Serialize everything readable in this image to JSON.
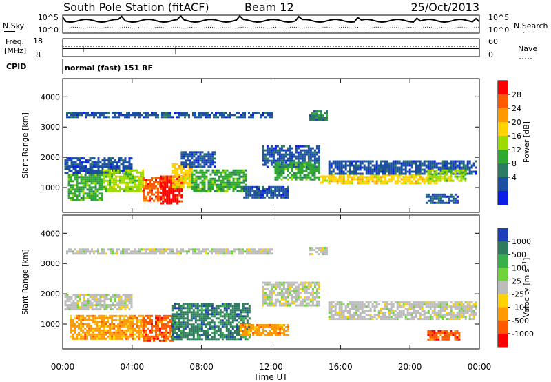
{
  "header": {
    "station": "South Pole Station (fitACF)",
    "beam": "Beam 12",
    "date": "25/Oct/2013"
  },
  "top_panels": {
    "nsky_label": "N.Sky",
    "nsky_ticks": [
      "10^5",
      "10^0"
    ],
    "nsearch_label": "N.Search",
    "nsearch_ticks": [
      "10^5",
      "10^0"
    ],
    "freq_label_line1": "Freq.",
    "freq_label_line2": "[MHz]",
    "freq_ticks": [
      "18",
      "8"
    ],
    "nave_label": "Nave",
    "nave_ticks": [
      "60",
      "0"
    ],
    "cpid_label": "CPID",
    "cpid_text": "normal (fast) 151 RF"
  },
  "chart_data": [
    {
      "type": "heatmap",
      "title": "",
      "xlabel": "Time UT",
      "ylabel": "Slant Range [km]",
      "x_ticks": [
        "00:00",
        "04:00",
        "08:00",
        "12:00",
        "16:00",
        "20:00",
        "00:00"
      ],
      "y_ticks": [
        "1000",
        "2000",
        "3000",
        "4000"
      ],
      "xlim": [
        0,
        24
      ],
      "ylim": [
        180,
        4600
      ],
      "colorbar": {
        "label": "Power [dB]",
        "ticks": [
          "28",
          "24",
          "20",
          "16",
          "12",
          "8",
          "4"
        ],
        "colors": [
          "#ff0000",
          "#ff5a00",
          "#ff9a00",
          "#ffd200",
          "#9adc00",
          "#2ea82e",
          "#2b7a63",
          "#1b4fa0",
          "#0a1ee6"
        ]
      },
      "features": [
        {
          "x0": 0.1,
          "x1": 4.0,
          "y0": 1500,
          "y1": 2000,
          "level": 7
        },
        {
          "x0": 0.3,
          "x1": 2.3,
          "y0": 600,
          "y1": 1450,
          "level": 5
        },
        {
          "x0": 2.3,
          "x1": 4.6,
          "y0": 850,
          "y1": 1600,
          "level": 4
        },
        {
          "x0": 4.6,
          "x1": 5.8,
          "y0": 550,
          "y1": 1350,
          "level": 1
        },
        {
          "x0": 5.6,
          "x1": 6.9,
          "y0": 500,
          "y1": 1400,
          "level": 0
        },
        {
          "x0": 6.3,
          "x1": 7.4,
          "y0": 1000,
          "y1": 1800,
          "level": 3
        },
        {
          "x0": 7.4,
          "x1": 10.6,
          "y0": 900,
          "y1": 1600,
          "level": 5
        },
        {
          "x0": 6.8,
          "x1": 8.8,
          "y0": 1700,
          "y1": 2200,
          "level": 7
        },
        {
          "x0": 10.4,
          "x1": 13.0,
          "y0": 650,
          "y1": 1050,
          "level": 7
        },
        {
          "x0": 11.5,
          "x1": 14.8,
          "y0": 1700,
          "y1": 2400,
          "level": 7
        },
        {
          "x0": 12.2,
          "x1": 14.8,
          "y0": 1300,
          "y1": 1850,
          "level": 5
        },
        {
          "x0": 14.8,
          "x1": 15.3,
          "y0": 1150,
          "y1": 1400,
          "level": 3
        },
        {
          "x0": 14.2,
          "x1": 15.2,
          "y0": 3250,
          "y1": 3550,
          "level": 6
        },
        {
          "x0": 15.3,
          "x1": 21.5,
          "y0": 1150,
          "y1": 1450,
          "level": 3
        },
        {
          "x0": 15.3,
          "x1": 23.8,
          "y0": 1450,
          "y1": 1900,
          "level": 7
        },
        {
          "x0": 21.0,
          "x1": 23.2,
          "y0": 1200,
          "y1": 1600,
          "level": 4
        },
        {
          "x0": 20.9,
          "x1": 22.8,
          "y0": 500,
          "y1": 800,
          "level": 7
        },
        {
          "x0": 0.2,
          "x1": 12.0,
          "y0": 3300,
          "y1": 3500,
          "level": 7
        }
      ]
    },
    {
      "type": "heatmap",
      "title": "",
      "xlabel": "Time UT",
      "ylabel": "Slant Range [km]",
      "x_ticks": [
        "00:00",
        "04:00",
        "08:00",
        "12:00",
        "16:00",
        "20:00",
        "00:00"
      ],
      "y_ticks": [
        "1000",
        "2000",
        "3000",
        "4000"
      ],
      "xlim": [
        0,
        24
      ],
      "ylim": [
        180,
        4600
      ],
      "colorbar": {
        "label": "Velocity [m s^-1]",
        "ticks": [
          "1000",
          "500",
          "100",
          "25",
          "-25",
          "-100",
          "-500",
          "-1000"
        ],
        "colors": [
          "#1a3fb8",
          "#2e7a5e",
          "#37b04a",
          "#6fd43a",
          "#bcbcbc",
          "#ffd200",
          "#ff9a00",
          "#ff5a00",
          "#ff0000"
        ]
      },
      "features": [
        {
          "x0": 0.1,
          "x1": 4.0,
          "y0": 1500,
          "y1": 2000,
          "level": 4
        },
        {
          "x0": 0.4,
          "x1": 4.6,
          "y0": 500,
          "y1": 1300,
          "level": 6
        },
        {
          "x0": 4.6,
          "x1": 6.3,
          "y0": 450,
          "y1": 1300,
          "level": 7
        },
        {
          "x0": 6.3,
          "x1": 10.8,
          "y0": 500,
          "y1": 1700,
          "level": 1
        },
        {
          "x0": 10.2,
          "x1": 13.0,
          "y0": 600,
          "y1": 1000,
          "level": 6
        },
        {
          "x0": 11.5,
          "x1": 14.8,
          "y0": 1600,
          "y1": 2400,
          "level": 4
        },
        {
          "x0": 14.2,
          "x1": 15.2,
          "y0": 3300,
          "y1": 3550,
          "level": 4
        },
        {
          "x0": 15.3,
          "x1": 23.8,
          "y0": 1150,
          "y1": 1750,
          "level": 4
        },
        {
          "x0": 21.0,
          "x1": 22.8,
          "y0": 500,
          "y1": 800,
          "level": 7
        },
        {
          "x0": 0.2,
          "x1": 12.0,
          "y0": 3300,
          "y1": 3500,
          "level": 4
        }
      ]
    }
  ]
}
